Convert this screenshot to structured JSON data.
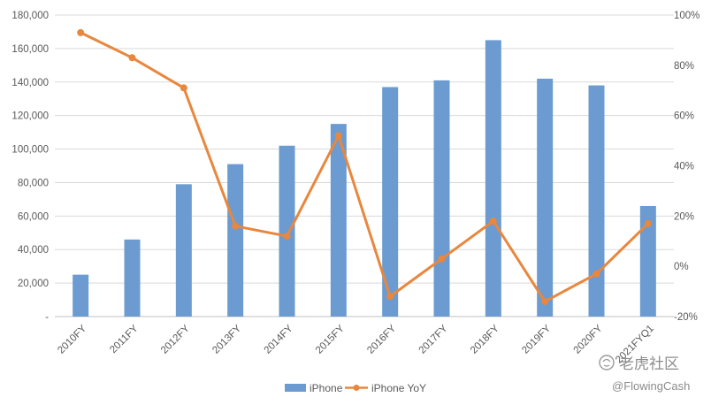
{
  "chart_data": {
    "type": "bar",
    "categories": [
      "2010FY",
      "2011FY",
      "2012FY",
      "2013FY",
      "2014FY",
      "2015FY",
      "2016FY",
      "2017FY",
      "2018FY",
      "2019FY",
      "2020FY",
      "2021FYQ1"
    ],
    "series": [
      {
        "name": "iPhone",
        "type": "bar",
        "axis": "left",
        "color": "#6b9bd1",
        "values": [
          25000,
          46000,
          79000,
          91000,
          102000,
          115000,
          137000,
          141000,
          165000,
          142000,
          138000,
          66000
        ]
      },
      {
        "name": "iPhone YoY",
        "type": "line",
        "axis": "right",
        "color": "#e8873d",
        "values": [
          0.93,
          0.83,
          0.71,
          0.16,
          0.12,
          0.52,
          -0.12,
          0.03,
          0.18,
          -0.14,
          -0.03,
          0.17
        ]
      }
    ],
    "left_axis": {
      "ylim": [
        0,
        180000
      ],
      "ticks": [
        {
          "value": 0,
          "label": "-"
        },
        {
          "value": 20000,
          "label": "20,000"
        },
        {
          "value": 40000,
          "label": "40,000"
        },
        {
          "value": 60000,
          "label": "60,000"
        },
        {
          "value": 80000,
          "label": "80,000"
        },
        {
          "value": 100000,
          "label": "100,000"
        },
        {
          "value": 120000,
          "label": "120,000"
        },
        {
          "value": 140000,
          "label": "140,000"
        },
        {
          "value": 160000,
          "label": "160,000"
        },
        {
          "value": 180000,
          "label": "180,000"
        }
      ]
    },
    "right_axis": {
      "ylim": [
        -0.2,
        1.0
      ],
      "ticks": [
        {
          "value": -0.2,
          "label": "-20%"
        },
        {
          "value": 0.0,
          "label": "0%"
        },
        {
          "value": 0.2,
          "label": "20%"
        },
        {
          "value": 0.4,
          "label": "40%"
        },
        {
          "value": 0.6,
          "label": "60%"
        },
        {
          "value": 0.8,
          "label": "80%"
        },
        {
          "value": 1.0,
          "label": "100%"
        }
      ]
    },
    "grid": true,
    "legend": "bottom-center"
  },
  "watermark": {
    "brand": "老虎社区",
    "handle": "@FlowingCash",
    "icon": "tiger-community-logo-icon"
  }
}
